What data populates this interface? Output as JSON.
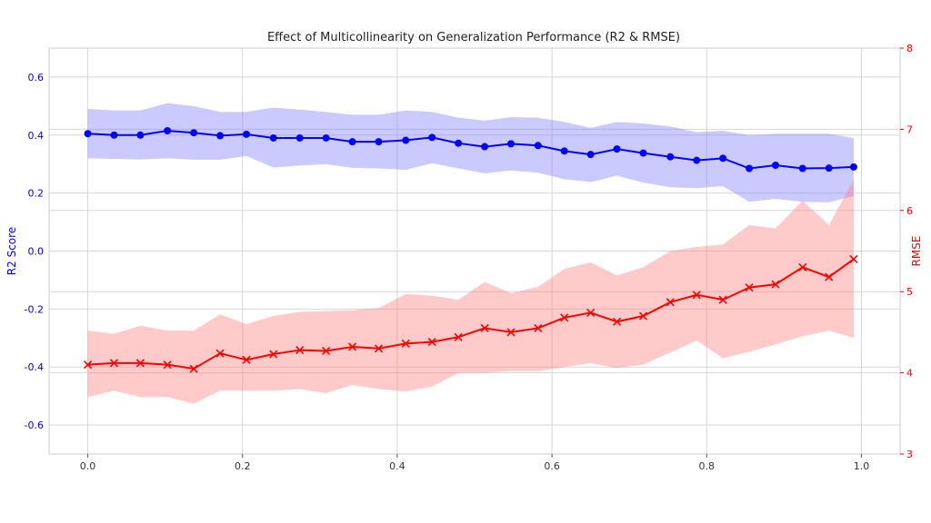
{
  "chart_data": {
    "type": "line",
    "title": "Effect of Multicollinearity on Generalization Performance (R2 & RMSE)",
    "xlabel": "",
    "xlim": [
      -0.05,
      1.05
    ],
    "xticks": [
      0.0,
      0.2,
      0.4,
      0.6,
      0.8,
      1.0
    ],
    "xtick_labels": [
      "0.0",
      "0.2",
      "0.4",
      "0.6",
      "0.8",
      "1.0"
    ],
    "y_left": {
      "label": "R2 Score",
      "lim": [
        -0.7,
        0.7
      ],
      "ticks": [
        -0.6,
        -0.4,
        -0.2,
        0.0,
        0.2,
        0.4,
        0.6
      ],
      "tick_labels": [
        "-0.6",
        "-0.4",
        "-0.2",
        "0.0",
        "0.2",
        "0.4",
        "0.6"
      ],
      "color": "#0000ff"
    },
    "y_right": {
      "label": "RMSE",
      "lim": [
        3,
        8
      ],
      "ticks": [
        3,
        4,
        5,
        6,
        7,
        8
      ],
      "tick_labels": [
        "3",
        "4",
        "5",
        "6",
        "7",
        "8"
      ],
      "color": "#ff0000"
    },
    "grid": true,
    "x": [
      0.0,
      0.034,
      0.068,
      0.103,
      0.137,
      0.171,
      0.205,
      0.24,
      0.274,
      0.308,
      0.342,
      0.376,
      0.411,
      0.445,
      0.479,
      0.513,
      0.547,
      0.582,
      0.616,
      0.65,
      0.684,
      0.718,
      0.753,
      0.787,
      0.821,
      0.855,
      0.889,
      0.924,
      0.958,
      0.99
    ],
    "series": [
      {
        "axis": "left",
        "marker": "circle",
        "color": "#0000ff",
        "band_color": "#8080ff",
        "values": [
          0.405,
          0.4,
          0.4,
          0.415,
          0.408,
          0.398,
          0.403,
          0.39,
          0.39,
          0.39,
          0.377,
          0.377,
          0.382,
          0.392,
          0.372,
          0.36,
          0.37,
          0.364,
          0.345,
          0.333,
          0.352,
          0.338,
          0.325,
          0.313,
          0.32,
          0.285,
          0.296,
          0.285,
          0.286,
          0.29
        ],
        "upper": [
          0.49,
          0.485,
          0.485,
          0.51,
          0.5,
          0.48,
          0.48,
          0.495,
          0.488,
          0.48,
          0.47,
          0.47,
          0.485,
          0.48,
          0.46,
          0.45,
          0.462,
          0.46,
          0.445,
          0.425,
          0.445,
          0.44,
          0.43,
          0.41,
          0.415,
          0.4,
          0.405,
          0.405,
          0.405,
          0.39
        ],
        "lower": [
          0.32,
          0.318,
          0.316,
          0.32,
          0.315,
          0.315,
          0.328,
          0.288,
          0.295,
          0.3,
          0.287,
          0.285,
          0.28,
          0.303,
          0.285,
          0.268,
          0.278,
          0.27,
          0.248,
          0.238,
          0.26,
          0.236,
          0.22,
          0.217,
          0.224,
          0.17,
          0.18,
          0.17,
          0.168,
          0.19
        ]
      },
      {
        "axis": "right",
        "marker": "x",
        "color": "#ff0000",
        "band_color": "#ff8080",
        "values": [
          4.1,
          4.12,
          4.12,
          4.1,
          4.05,
          4.24,
          4.16,
          4.23,
          4.28,
          4.27,
          4.32,
          4.3,
          4.36,
          4.38,
          4.44,
          4.55,
          4.5,
          4.55,
          4.68,
          4.74,
          4.63,
          4.7,
          4.87,
          4.96,
          4.9,
          5.05,
          5.09,
          5.3,
          5.18,
          5.4
        ],
        "upper": [
          4.52,
          4.48,
          4.58,
          4.52,
          4.52,
          4.72,
          4.6,
          4.7,
          4.75,
          4.76,
          4.77,
          4.8,
          4.97,
          4.95,
          4.9,
          5.12,
          4.98,
          5.06,
          5.28,
          5.36,
          5.2,
          5.3,
          5.5,
          5.55,
          5.58,
          5.82,
          5.78,
          6.12,
          5.82,
          6.38
        ],
        "lower": [
          3.7,
          3.78,
          3.7,
          3.7,
          3.62,
          3.78,
          3.78,
          3.78,
          3.8,
          3.75,
          3.85,
          3.8,
          3.77,
          3.83,
          4.0,
          4.0,
          4.02,
          4.02,
          4.07,
          4.12,
          4.06,
          4.1,
          4.25,
          4.4,
          4.18,
          4.26,
          4.35,
          4.45,
          4.52,
          4.43
        ]
      }
    ]
  }
}
